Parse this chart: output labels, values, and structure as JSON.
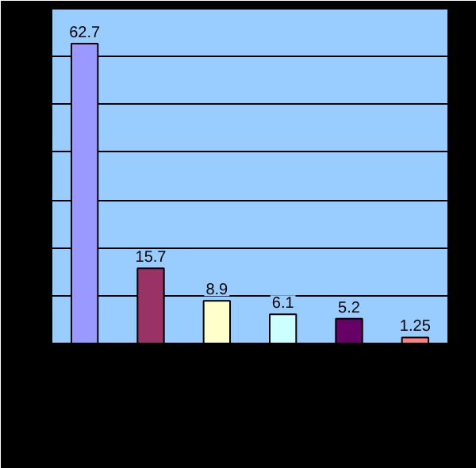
{
  "chart_data": {
    "type": "bar",
    "categories": [
      null,
      null,
      null,
      null,
      null,
      null
    ],
    "values": [
      62.7,
      15.7,
      8.9,
      6.1,
      5.2,
      1.25
    ],
    "colors": [
      "#9999ff",
      "#993366",
      "#ffffcc",
      "#ccffff",
      "#660066",
      "#ff8080"
    ],
    "ylim": [
      0,
      70
    ],
    "yticks": [
      {
        "value": 0,
        "label": null
      },
      {
        "value": 10,
        "label": null
      },
      {
        "value": 20,
        "label": null
      },
      {
        "value": 30,
        "label": null
      },
      {
        "value": 40,
        "label": null
      },
      {
        "value": 50,
        "label": null
      },
      {
        "value": 60,
        "label": null
      },
      {
        "value": 70,
        "label": null
      }
    ],
    "grid": "y",
    "data_labels": true
  }
}
